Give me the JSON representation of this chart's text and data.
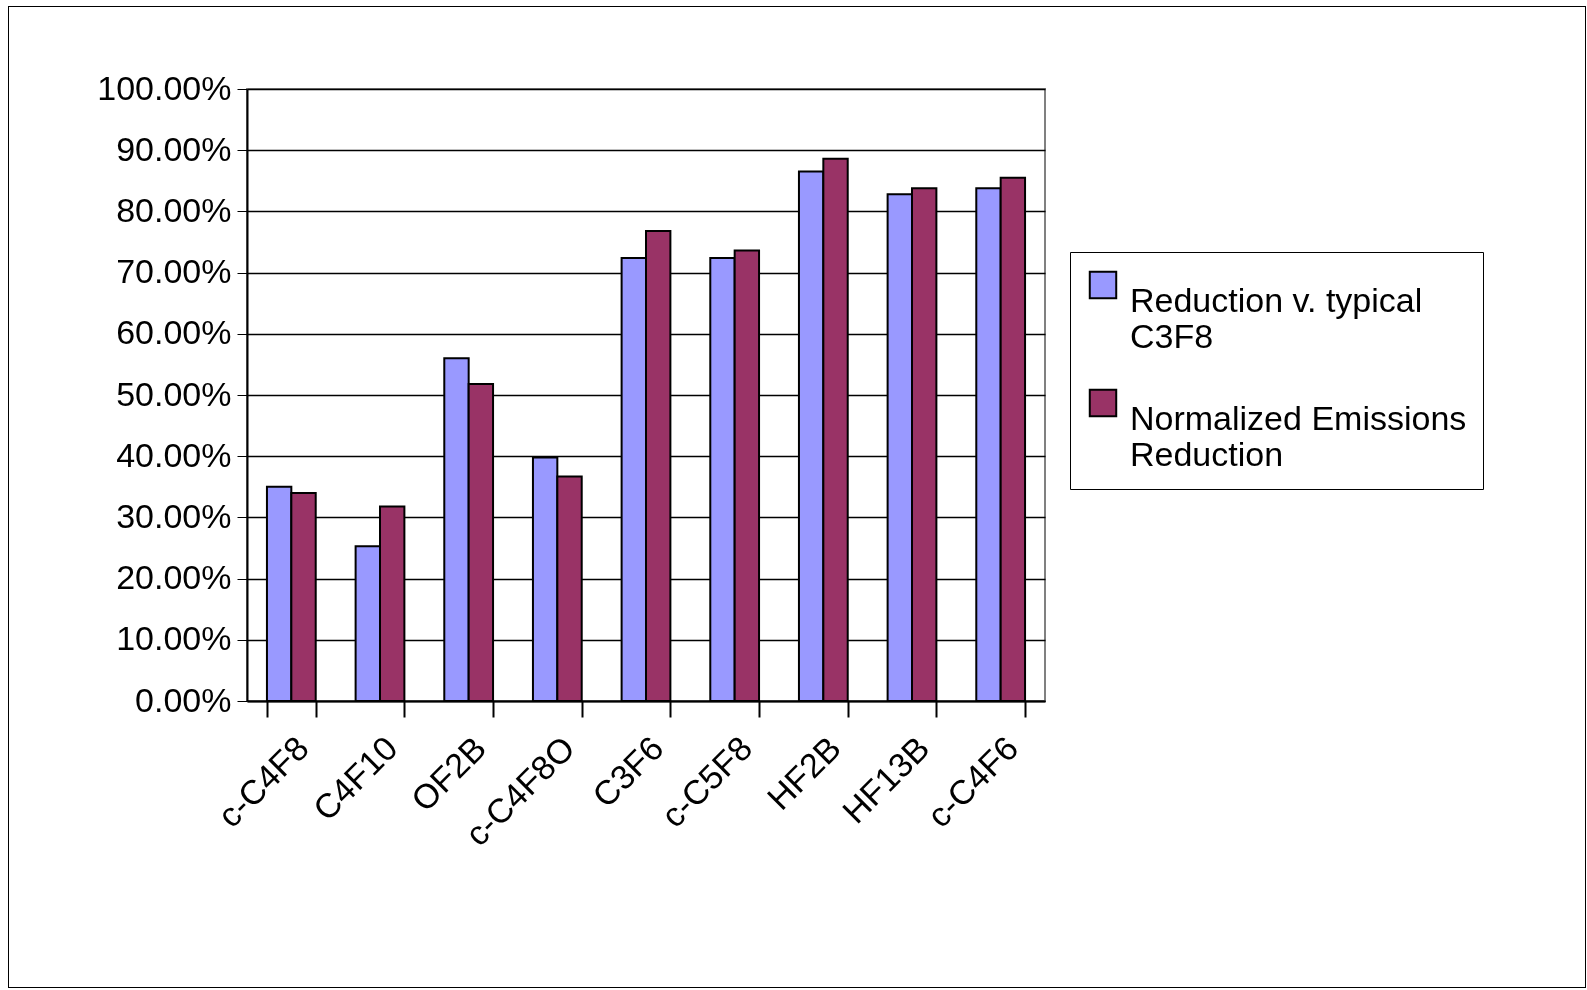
{
  "chart_data": {
    "type": "bar",
    "categories": [
      "c-C4F8",
      "C4F10",
      "OF2B",
      "c-C4F8O",
      "C3F6",
      "c-C5F8",
      "HF2B",
      "HF13B",
      "c-C4F6"
    ],
    "series": [
      {
        "name": "Reduction v. typical C3F8",
        "color": "#9999ff",
        "values": [
          35.0,
          25.3,
          56.0,
          39.8,
          72.4,
          72.4,
          86.5,
          82.8,
          83.8
        ]
      },
      {
        "name": "Normalized Emissions Reduction",
        "color": "#993366",
        "values": [
          34.0,
          31.8,
          51.8,
          36.7,
          76.8,
          73.6,
          88.6,
          83.8,
          85.5
        ]
      }
    ],
    "ylim": [
      0,
      100
    ],
    "yticks": [
      {
        "value": 0,
        "label": "0.00%"
      },
      {
        "value": 10,
        "label": "10.00%"
      },
      {
        "value": 20,
        "label": "20.00%"
      },
      {
        "value": 30,
        "label": "30.00%"
      },
      {
        "value": 40,
        "label": "40.00%"
      },
      {
        "value": 50,
        "label": "50.00%"
      },
      {
        "value": 60,
        "label": "60.00%"
      },
      {
        "value": 70,
        "label": "70.00%"
      },
      {
        "value": 80,
        "label": "80.00%"
      },
      {
        "value": 90,
        "label": "90.00%"
      },
      {
        "value": 100,
        "label": "100.00%"
      }
    ],
    "grid": "y",
    "legend": "right"
  }
}
